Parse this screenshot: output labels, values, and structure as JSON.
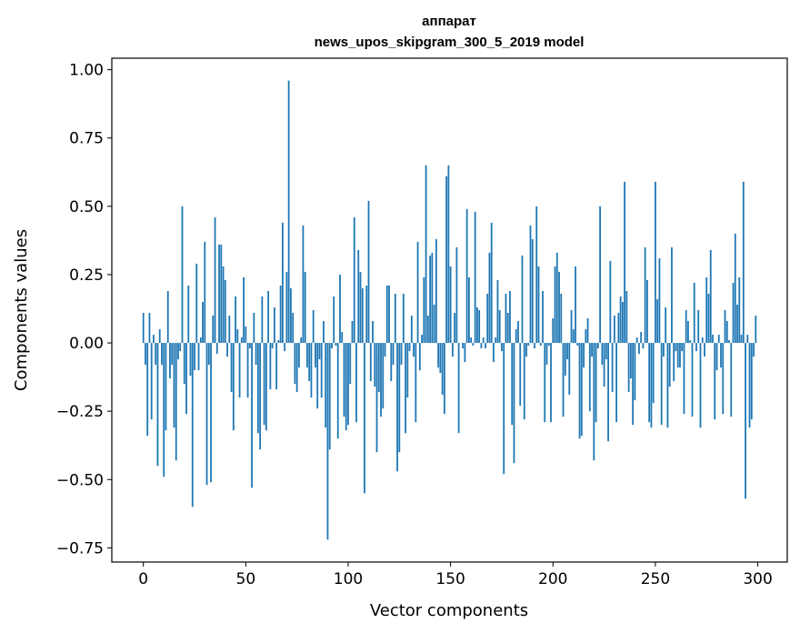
{
  "chart_data": {
    "type": "bar",
    "title": "аппарат",
    "subtitle": "news_upos_skipgram_300_5_2019 model",
    "xlabel": "Vector components",
    "ylabel": "Components values",
    "xlim": [
      -15.4,
      314.4
    ],
    "ylim": [
      -0.802,
      1.042
    ],
    "xticks": [
      "0",
      "50",
      "100",
      "150",
      "200",
      "250",
      "300"
    ],
    "xtick_values": [
      0,
      50,
      100,
      150,
      200,
      250,
      300
    ],
    "yticks": [
      "−0.75",
      "−0.50",
      "−0.25",
      "0.00",
      "0.25",
      "0.50",
      "0.75",
      "1.00"
    ],
    "ytick_values": [
      -0.75,
      -0.5,
      -0.25,
      0,
      0.25,
      0.5,
      0.75,
      1.0
    ],
    "bar_color": "#1f77b4",
    "values": [
      0.11,
      -0.08,
      -0.34,
      0.11,
      -0.28,
      0.03,
      -0.08,
      -0.45,
      0.05,
      -0.08,
      -0.49,
      -0.32,
      0.19,
      -0.13,
      -0.08,
      -0.31,
      -0.43,
      -0.06,
      -0.03,
      0.5,
      -0.15,
      -0.26,
      0.21,
      -0.12,
      -0.6,
      -0.1,
      0.29,
      -0.1,
      0.02,
      0.15,
      0.37,
      -0.52,
      -0.08,
      -0.51,
      0.1,
      0.46,
      -0.04,
      0.36,
      0.36,
      0.28,
      0.23,
      -0.05,
      0.1,
      -0.18,
      -0.32,
      0.17,
      0.05,
      -0.2,
      0.02,
      0.24,
      0.06,
      -0.2,
      -0.02,
      -0.53,
      0.11,
      -0.08,
      -0.33,
      -0.39,
      0.17,
      -0.3,
      -0.32,
      0.19,
      -0.17,
      -0.02,
      0.13,
      -0.17,
      0.01,
      0.21,
      0.44,
      -0.03,
      0.26,
      0.96,
      0.2,
      0.11,
      -0.15,
      -0.18,
      -0.09,
      0.02,
      0.43,
      0.26,
      -0.09,
      -0.14,
      -0.2,
      0.12,
      -0.09,
      -0.24,
      -0.06,
      -0.2,
      0.08,
      -0.31,
      -0.72,
      -0.39,
      -0.02,
      0.17,
      -0.01,
      -0.35,
      0.25,
      0.04,
      -0.27,
      -0.32,
      -0.3,
      -0.15,
      0.08,
      0.46,
      -0.29,
      0.34,
      0.26,
      0.2,
      -0.55,
      0.21,
      0.52,
      -0.14,
      0.08,
      -0.16,
      -0.4,
      -0.18,
      -0.27,
      -0.24,
      -0.05,
      0.21,
      0.21,
      -0.14,
      -0.08,
      0.18,
      -0.47,
      -0.4,
      -0.08,
      0.18,
      -0.33,
      -0.2,
      -0.03,
      0.1,
      -0.05,
      -0.29,
      0.37,
      -0.1,
      0.03,
      0.24,
      0.65,
      0.1,
      0.32,
      0.33,
      0.14,
      0.38,
      -0.09,
      -0.11,
      -0.19,
      -0.26,
      0.61,
      0.65,
      0.28,
      -0.05,
      0.11,
      0.35,
      -0.33,
      0.0,
      -0.02,
      -0.07,
      0.49,
      0.24,
      0.02,
      -0.01,
      0.48,
      0.13,
      0.12,
      -0.02,
      0.02,
      -0.02,
      0.18,
      0.33,
      0.44,
      -0.07,
      0.02,
      0.23,
      0.12,
      -0.03,
      -0.48,
      0.18,
      0.11,
      0.19,
      -0.3,
      -0.44,
      0.05,
      0.08,
      -0.23,
      0.32,
      -0.28,
      -0.05,
      -0.01,
      0.43,
      0.38,
      -0.02,
      0.5,
      0.28,
      -0.01,
      0.19,
      -0.29,
      -0.08,
      -0.01,
      -0.29,
      0.09,
      0.28,
      0.33,
      0.26,
      0.18,
      -0.27,
      -0.12,
      -0.06,
      -0.19,
      0.12,
      0.05,
      0.28,
      -0.01,
      -0.35,
      -0.34,
      -0.09,
      0.05,
      0.09,
      -0.25,
      -0.05,
      -0.43,
      -0.29,
      -0.02,
      0.5,
      -0.08,
      -0.16,
      -0.06,
      -0.36,
      0.3,
      -0.18,
      0.1,
      -0.29,
      0.11,
      0.17,
      0.15,
      0.59,
      0.19,
      -0.18,
      -0.13,
      -0.3,
      -0.21,
      0.02,
      -0.04,
      0.04,
      -0.02,
      0.35,
      0.23,
      -0.29,
      -0.31,
      -0.22,
      0.59,
      0.16,
      0.31,
      -0.3,
      -0.05,
      0.13,
      -0.31,
      -0.16,
      0.35,
      -0.14,
      -0.03,
      -0.09,
      -0.09,
      -0.03,
      -0.26,
      0.12,
      0.08,
      0.01,
      -0.27,
      0.22,
      -0.03,
      0.12,
      -0.31,
      0.02,
      -0.05,
      0.24,
      0.18,
      0.34,
      0.03,
      -0.28,
      -0.1,
      0.03,
      -0.09,
      -0.26,
      0.12,
      0.08,
      0.01,
      -0.27,
      0.22,
      0.4,
      0.14,
      0.24,
      0.03,
      0.59,
      -0.57,
      0.03,
      -0.31,
      -0.28,
      -0.05,
      0.1
    ]
  }
}
